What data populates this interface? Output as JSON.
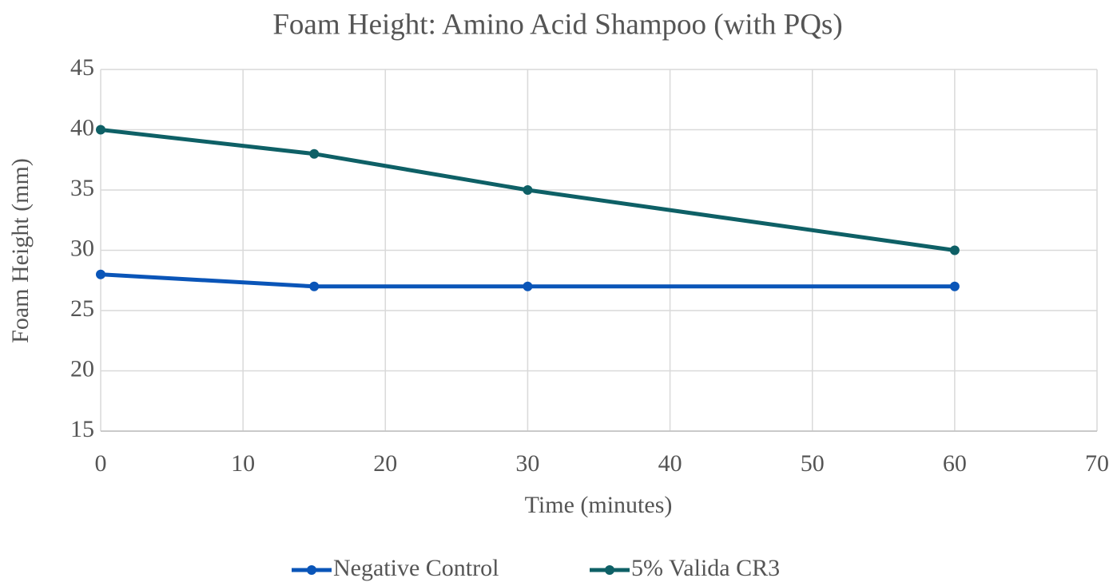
{
  "chart_data": {
    "type": "line",
    "title": "Foam Height: Amino Acid Shampoo (with PQs)",
    "x_label": "Time (minutes)",
    "y_label": "Foam Height (mm)",
    "x": [
      0,
      15,
      30,
      60
    ],
    "series": [
      {
        "name": "Negative Control",
        "color": "#0a55b8",
        "values": [
          28,
          27,
          27,
          27
        ]
      },
      {
        "name": "5% Valida CR3",
        "color": "#0e6066",
        "values": [
          40,
          38,
          35,
          30
        ]
      }
    ],
    "xlim": [
      0,
      70
    ],
    "xticks": [
      0,
      10,
      20,
      30,
      40,
      50,
      60,
      70
    ],
    "ylim": [
      15,
      45
    ],
    "yticks": [
      15,
      20,
      25,
      30,
      35,
      40,
      45
    ],
    "grid": true,
    "legend": "bottom"
  }
}
